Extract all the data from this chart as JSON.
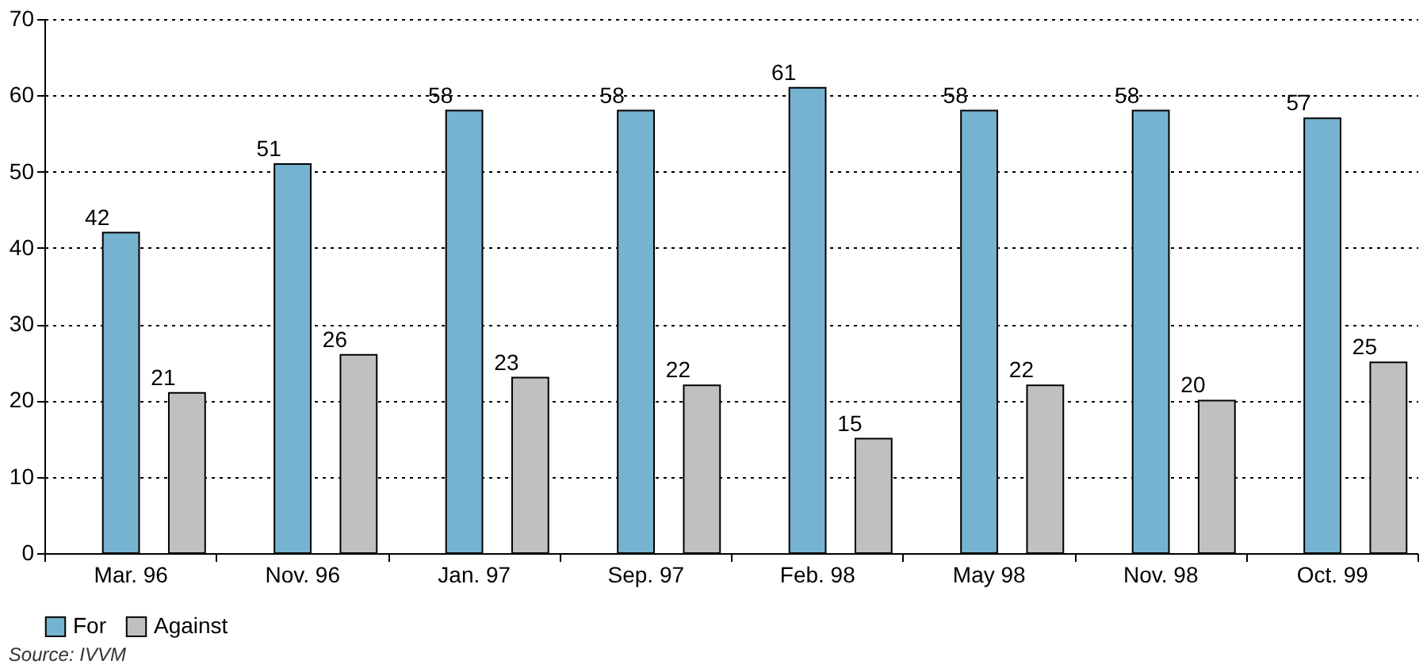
{
  "chart_data": {
    "type": "bar",
    "categories": [
      "Mar. 96",
      "Nov. 96",
      "Jan. 97",
      "Sep. 97",
      "Feb. 98",
      "May 98",
      "Nov. 98",
      "Oct. 99"
    ],
    "series": [
      {
        "name": "For",
        "color": "#76b3d1",
        "values": [
          42,
          51,
          58,
          58,
          61,
          58,
          58,
          57
        ]
      },
      {
        "name": "Against",
        "color": "#c0c0c0",
        "values": [
          21,
          26,
          23,
          22,
          15,
          22,
          20,
          25
        ]
      }
    ],
    "ylim": [
      0,
      70
    ],
    "yticks": [
      0,
      10,
      20,
      30,
      40,
      50,
      60,
      70
    ],
    "grid": "y",
    "legend": "bottom",
    "data_labels": true,
    "annotations": [
      "Source: IVVM"
    ]
  }
}
